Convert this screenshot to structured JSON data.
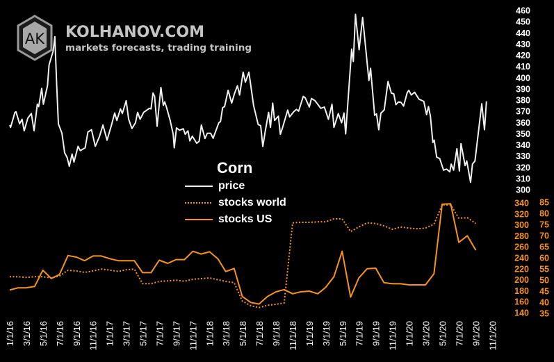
{
  "brand": {
    "logo_letters": "AK",
    "name": "KOLHANOV.COM",
    "tagline": "markets forecasts, trading training"
  },
  "colors": {
    "background": "#000000",
    "price": "#f0f0f0",
    "stocks": "#f7941d",
    "price_axis": "#ffffff",
    "stocks_axis": "#f7941d"
  },
  "chart_data": {
    "type": "line",
    "title": "Corn",
    "legend": {
      "placement": "center",
      "entries": [
        "price",
        "stocks world",
        "stocks US"
      ]
    },
    "grid": false,
    "x_ticks": [
      "1/1/16",
      "3/1/16",
      "5/1/16",
      "7/1/16",
      "9/1/16",
      "11/1/16",
      "1/1/17",
      "3/1/17",
      "5/1/17",
      "7/1/17",
      "9/1/17",
      "11/1/17",
      "1/1/18",
      "3/1/18",
      "5/1/18",
      "7/1/18",
      "9/1/18",
      "11/1/18",
      "1/1/19",
      "3/1/19",
      "5/1/19",
      "7/1/19",
      "9/1/19",
      "11/1/19",
      "1/1/20",
      "3/1/20",
      "5/1/20",
      "7/1/20",
      "9/1/20",
      "11/1/20"
    ],
    "xlim": [
      "2016-01-01",
      "2020-11-01"
    ],
    "axes": {
      "price": {
        "side": "right",
        "ylim": [
          300,
          460
        ],
        "ticks": [
          460,
          450,
          440,
          430,
          420,
          410,
          400,
          390,
          380,
          370,
          360,
          350,
          340,
          330,
          320,
          310,
          300
        ]
      },
      "stocks_world": {
        "side": "right",
        "ylim": [
          140,
          340
        ],
        "ticks": [
          340,
          320,
          300,
          280,
          260,
          240,
          220,
          200,
          180,
          160,
          140
        ]
      },
      "stocks_us": {
        "side": "right-outer",
        "ylim": [
          35,
          85
        ],
        "ticks": [
          85,
          80,
          75,
          70,
          65,
          60,
          55,
          50,
          45,
          40,
          35
        ]
      }
    },
    "series": [
      {
        "name": "price",
        "axis": "price",
        "style": "solid",
        "points": [
          [
            "2016-01-01",
            357.7
          ],
          [
            "2016-01-04",
            355.6
          ],
          [
            "2016-01-20",
            369
          ],
          [
            "2016-01-24",
            369.6
          ],
          [
            "2016-02-06",
            358.7
          ],
          [
            "2016-02-15",
            362.8
          ],
          [
            "2016-02-23",
            352.5
          ],
          [
            "2016-03-07",
            363.9
          ],
          [
            "2016-03-20",
            368
          ],
          [
            "2016-03-30",
            352.5
          ],
          [
            "2016-04-11",
            376.3
          ],
          [
            "2016-04-16",
            374.2
          ],
          [
            "2016-04-27",
            390.4
          ],
          [
            "2016-05-03",
            376.3
          ],
          [
            "2016-05-18",
            392.8
          ],
          [
            "2016-05-24",
            411.4
          ],
          [
            "2016-06-08",
            423.8
          ],
          [
            "2016-06-14",
            436.6
          ],
          [
            "2016-06-21",
            392.8
          ],
          [
            "2016-06-27",
            358.7
          ],
          [
            "2016-07-10",
            350.4
          ],
          [
            "2016-07-20",
            332.9
          ],
          [
            "2016-07-29",
            328.7
          ],
          [
            "2016-08-06",
            320.9
          ],
          [
            "2016-08-16",
            331.8
          ],
          [
            "2016-08-23",
            324.6
          ],
          [
            "2016-09-07",
            338.7
          ],
          [
            "2016-09-15",
            334.9
          ],
          [
            "2016-10-03",
            337.4
          ],
          [
            "2016-10-13",
            351.5
          ],
          [
            "2016-10-26",
            353.5
          ],
          [
            "2016-11-09",
            338.7
          ],
          [
            "2016-11-24",
            347.3
          ],
          [
            "2016-12-07",
            357.7
          ],
          [
            "2016-12-22",
            344.2
          ],
          [
            "2017-01-06",
            356.6
          ],
          [
            "2017-01-19",
            368.4
          ],
          [
            "2017-01-27",
            361.8
          ],
          [
            "2017-02-09",
            372.1
          ],
          [
            "2017-02-16",
            368
          ],
          [
            "2017-03-02",
            379.4
          ],
          [
            "2017-03-11",
            362.8
          ],
          [
            "2017-03-23",
            354.6
          ],
          [
            "2017-04-05",
            359.7
          ],
          [
            "2017-04-13",
            369
          ],
          [
            "2017-04-22",
            362.8
          ],
          [
            "2017-05-05",
            369
          ],
          [
            "2017-05-26",
            372.6
          ],
          [
            "2017-06-01",
            372.1
          ],
          [
            "2017-06-08",
            386.2
          ],
          [
            "2017-06-14",
            383.5
          ],
          [
            "2017-06-23",
            356.6
          ],
          [
            "2017-07-07",
            391.2
          ],
          [
            "2017-07-16",
            375.2
          ],
          [
            "2017-07-21",
            378.3
          ],
          [
            "2017-07-28",
            373.2
          ],
          [
            "2017-08-10",
            361.8
          ],
          [
            "2017-08-21",
            349.4
          ],
          [
            "2017-08-25",
            337.4
          ],
          [
            "2017-09-02",
            355.2
          ],
          [
            "2017-09-13",
            353.1
          ],
          [
            "2017-09-27",
            354.4
          ],
          [
            "2017-10-04",
            349.4
          ],
          [
            "2017-10-14",
            352.5
          ],
          [
            "2017-10-21",
            343.6
          ],
          [
            "2017-10-30",
            347.7
          ],
          [
            "2017-11-15",
            341.5
          ],
          [
            "2017-11-24",
            343.2
          ],
          [
            "2017-12-02",
            357.7
          ],
          [
            "2017-12-15",
            345.7
          ],
          [
            "2017-12-24",
            350.4
          ],
          [
            "2018-01-05",
            350.4
          ],
          [
            "2018-01-14",
            345.9
          ],
          [
            "2018-02-04",
            359.7
          ],
          [
            "2018-02-10",
            360.8
          ],
          [
            "2018-02-18",
            373.2
          ],
          [
            "2018-02-25",
            374.2
          ],
          [
            "2018-03-10",
            388.7
          ],
          [
            "2018-03-23",
            377.3
          ],
          [
            "2018-04-02",
            385.6
          ],
          [
            "2018-04-13",
            392.8
          ],
          [
            "2018-04-21",
            384.5
          ],
          [
            "2018-05-04",
            404.8
          ],
          [
            "2018-05-12",
            396
          ],
          [
            "2018-05-25",
            404.8
          ],
          [
            "2018-06-11",
            375.2
          ],
          [
            "2018-06-28",
            358.1
          ],
          [
            "2018-07-07",
            357.2
          ],
          [
            "2018-07-15",
            338.5
          ],
          [
            "2018-07-24",
            352.5
          ],
          [
            "2018-08-05",
            369
          ],
          [
            "2018-08-12",
            355.6
          ],
          [
            "2018-08-20",
            377.3
          ],
          [
            "2018-08-27",
            361.8
          ],
          [
            "2018-09-10",
            365.6
          ],
          [
            "2018-09-17",
            349.4
          ],
          [
            "2018-09-25",
            355.2
          ],
          [
            "2018-10-14",
            371.1
          ],
          [
            "2018-10-21",
            364.9
          ],
          [
            "2018-11-05",
            369.6
          ],
          [
            "2018-11-15",
            371.7
          ],
          [
            "2018-11-23",
            370.1
          ],
          [
            "2018-12-10",
            383.3
          ],
          [
            "2018-12-17",
            382
          ],
          [
            "2019-01-01",
            373.8
          ],
          [
            "2019-01-09",
            381.4
          ],
          [
            "2019-01-22",
            379.4
          ],
          [
            "2019-02-12",
            372.6
          ],
          [
            "2019-02-25",
            373.8
          ],
          [
            "2019-03-12",
            362.8
          ],
          [
            "2019-03-25",
            376.3
          ],
          [
            "2019-04-01",
            355.6
          ],
          [
            "2019-04-17",
            368
          ],
          [
            "2019-04-29",
            359.7
          ],
          [
            "2019-05-08",
            368.4
          ],
          [
            "2019-05-14",
            349.8
          ],
          [
            "2019-06-05",
            425.5
          ],
          [
            "2019-06-11",
            414.5
          ],
          [
            "2019-06-19",
            456.5
          ],
          [
            "2019-07-02",
            424.9
          ],
          [
            "2019-07-15",
            453.8
          ],
          [
            "2019-08-07",
            397.4
          ],
          [
            "2019-08-13",
            408.3
          ],
          [
            "2019-08-28",
            366.4
          ],
          [
            "2019-09-04",
            367.6
          ],
          [
            "2019-09-12",
            353.5
          ],
          [
            "2019-09-20",
            368.4
          ],
          [
            "2019-10-02",
            371.1
          ],
          [
            "2019-10-16",
            396.6
          ],
          [
            "2019-10-28",
            386.2
          ],
          [
            "2019-11-06",
            385.6
          ],
          [
            "2019-11-14",
            375.9
          ],
          [
            "2019-11-23",
            378.3
          ],
          [
            "2019-12-02",
            378
          ],
          [
            "2019-12-12",
            374.6
          ],
          [
            "2019-12-25",
            386.6
          ],
          [
            "2019-12-31",
            388.7
          ],
          [
            "2020-01-09",
            384.5
          ],
          [
            "2020-01-21",
            387
          ],
          [
            "2020-02-06",
            380.8
          ],
          [
            "2020-02-24",
            378.8
          ],
          [
            "2020-03-05",
            367
          ],
          [
            "2020-03-12",
            374.2
          ],
          [
            "2020-03-19",
            365.6
          ],
          [
            "2020-03-28",
            342.2
          ],
          [
            "2020-04-02",
            344.2
          ],
          [
            "2020-04-11",
            329.1
          ],
          [
            "2020-04-22",
            327.7
          ],
          [
            "2020-05-06",
            317.4
          ],
          [
            "2020-05-17",
            318.4
          ],
          [
            "2020-05-29",
            315.9
          ],
          [
            "2020-06-03",
            322.9
          ],
          [
            "2020-06-12",
            317.4
          ],
          [
            "2020-06-24",
            336.6
          ],
          [
            "2020-07-03",
            316.7
          ],
          [
            "2020-07-09",
            341.1
          ],
          [
            "2020-07-24",
            321.5
          ],
          [
            "2020-07-30",
            325.6
          ],
          [
            "2020-08-13",
            306.6
          ],
          [
            "2020-08-20",
            322.9
          ],
          [
            "2020-08-29",
            325.6
          ],
          [
            "2020-09-23",
            376.7
          ],
          [
            "2020-10-03",
            353.5
          ],
          [
            "2020-10-10",
            378.8
          ]
        ]
      },
      {
        "name": "stocks world",
        "axis": "stocks_world",
        "style": "dotted",
        "months": [
          "2016-01",
          "2016-02",
          "2016-03",
          "2016-04",
          "2016-05",
          "2016-06",
          "2016-07",
          "2016-08",
          "2016-09",
          "2016-10",
          "2016-11",
          "2016-12",
          "2017-01",
          "2017-02",
          "2017-03",
          "2017-04",
          "2017-05",
          "2017-06",
          "2017-07",
          "2017-08",
          "2017-09",
          "2017-10",
          "2017-11",
          "2017-12",
          "2018-01",
          "2018-02",
          "2018-03",
          "2018-04",
          "2018-05",
          "2018-06",
          "2018-07",
          "2018-08",
          "2018-09",
          "2018-10",
          "2018-11",
          "2018-12",
          "2019-01",
          "2019-02",
          "2019-03",
          "2019-04",
          "2019-05",
          "2019-06",
          "2019-07",
          "2019-08",
          "2019-09",
          "2019-10",
          "2019-11",
          "2019-12",
          "2020-01",
          "2020-02",
          "2020-03",
          "2020-04",
          "2020-05",
          "2020-06",
          "2020-07",
          "2020-08",
          "2020-09"
        ],
        "values": [
          205.4,
          205.4,
          204.2,
          205.4,
          205.4,
          203.3,
          206.7,
          217.2,
          216,
          213.4,
          216,
          219.4,
          217.6,
          215.1,
          218.1,
          219.4,
          192.8,
          192.8,
          197,
          197.8,
          199.1,
          197.4,
          200.8,
          202,
          203.3,
          200,
          197,
          194.8,
          161.1,
          152.7,
          149.2,
          153.5,
          155.2,
          157.7,
          303.7,
          304.6,
          304.6,
          305.4,
          305.4,
          310.9,
          310.9,
          287.7,
          296.1,
          303.7,
          302.4,
          298.2,
          291.9,
          296.1,
          294,
          292.8,
          294,
          301.1,
          336.2,
          336.2,
          312.2,
          313,
          302.4
        ]
      },
      {
        "name": "stocks US",
        "axis": "stocks_us",
        "style": "solid",
        "months": [
          "2016-01",
          "2016-02",
          "2016-03",
          "2016-04",
          "2016-05",
          "2016-06",
          "2016-07",
          "2016-08",
          "2016-09",
          "2016-10",
          "2016-11",
          "2016-12",
          "2017-01",
          "2017-02",
          "2017-03",
          "2017-04",
          "2017-05",
          "2017-06",
          "2017-07",
          "2017-08",
          "2017-09",
          "2017-10",
          "2017-11",
          "2017-12",
          "2018-01",
          "2018-02",
          "2018-03",
          "2018-04",
          "2018-05",
          "2018-06",
          "2018-07",
          "2018-08",
          "2018-09",
          "2018-10",
          "2018-11",
          "2018-12",
          "2019-01",
          "2019-02",
          "2019-03",
          "2019-04",
          "2019-05",
          "2019-06",
          "2019-07",
          "2019-08",
          "2019-09",
          "2019-10",
          "2019-11",
          "2019-12",
          "2020-01",
          "2020-02",
          "2020-03",
          "2020-04",
          "2020-05",
          "2020-06",
          "2020-07",
          "2020-08",
          "2020-09"
        ],
        "values": [
          45.5,
          46.5,
          46.5,
          47.1,
          54.4,
          50.7,
          52.5,
          61,
          60.3,
          58.7,
          60.8,
          60.8,
          59.6,
          58.7,
          58.7,
          58.7,
          53.3,
          53.3,
          58.9,
          57.5,
          59.2,
          59.2,
          62.9,
          61.7,
          62.7,
          59.5,
          53.8,
          55.2,
          42.6,
          39.9,
          39.2,
          42.6,
          44.7,
          45.7,
          43.8,
          44.7,
          45,
          43.8,
          46.6,
          51.5,
          62.9,
          42.3,
          50.9,
          55.1,
          55.3,
          48.8,
          48.3,
          48.3,
          47.8,
          47.8,
          47.8,
          52.8,
          84.1,
          84.3,
          66.9,
          69.9,
          63.4
        ]
      }
    ]
  }
}
